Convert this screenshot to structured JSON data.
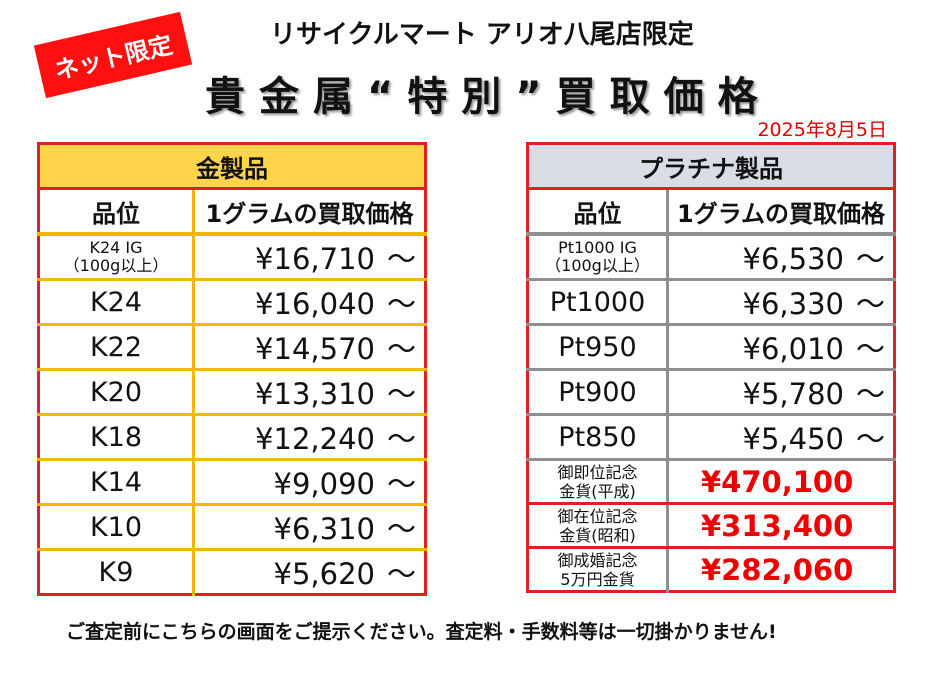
{
  "badge": "ネット限定",
  "store": "リサイクルマート アリオ八尾店限定",
  "headline": "貴金属“特別”買取価格",
  "date": "2025年8月5日",
  "gold": {
    "title": "金製品",
    "col_grade": "品位",
    "col_price": "1グラムの買取価格",
    "rows": [
      {
        "grade": "K24 IG",
        "sub": "（100g以上）",
        "price": "¥16,710",
        "tilde": "～"
      },
      {
        "grade": "K24",
        "price": "¥16,040",
        "tilde": "～"
      },
      {
        "grade": "K22",
        "price": "¥14,570",
        "tilde": "～"
      },
      {
        "grade": "K20",
        "price": "¥13,310",
        "tilde": "～"
      },
      {
        "grade": "K18",
        "price": "¥12,240",
        "tilde": "～"
      },
      {
        "grade": "K14",
        "price": "¥9,090",
        "tilde": "～"
      },
      {
        "grade": "K10",
        "price": "¥6,310",
        "tilde": "～"
      },
      {
        "grade": "K9",
        "price": "¥5,620",
        "tilde": "～"
      }
    ]
  },
  "platinum": {
    "title": "プラチナ製品",
    "col_grade": "品位",
    "col_price": "1グラムの買取価格",
    "rows": [
      {
        "grade": "Pt1000 IG",
        "sub": "（100g以上）",
        "price": "¥6,530",
        "tilde": "～"
      },
      {
        "grade": "Pt1000",
        "price": "¥6,330",
        "tilde": "～"
      },
      {
        "grade": "Pt950",
        "price": "¥6,010",
        "tilde": "～"
      },
      {
        "grade": "Pt900",
        "price": "¥5,780",
        "tilde": "～"
      },
      {
        "grade": "Pt850",
        "price": "¥5,450",
        "tilde": "～"
      }
    ],
    "coins": [
      {
        "line1": "御即位記念",
        "line2": "金貨(平成)",
        "price": "¥470,100"
      },
      {
        "line1": "御在位記念",
        "line2": "金貨(昭和)",
        "price": "¥313,400"
      },
      {
        "line1": "御成婚記念",
        "line2": "5万円金貨",
        "price": "¥282,060"
      }
    ]
  },
  "note": "ご査定前にこちらの画面をご提示ください。査定料・手数料等は一切掛かりません!"
}
